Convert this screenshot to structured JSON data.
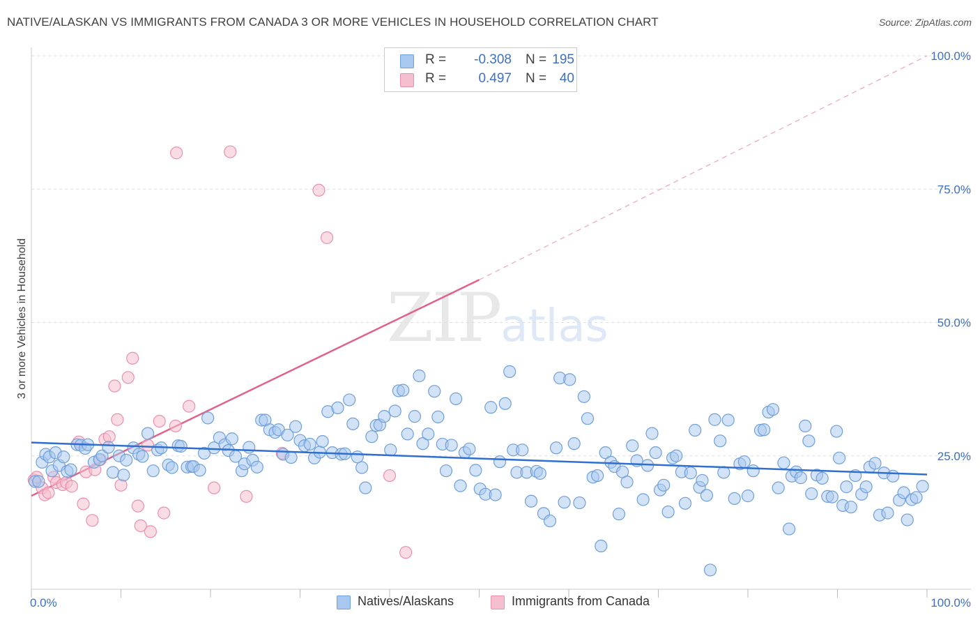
{
  "title": "NATIVE/ALASKAN VS IMMIGRANTS FROM CANADA 3 OR MORE VEHICLES IN HOUSEHOLD CORRELATION CHART",
  "source": "Source: ZipAtlas.com",
  "watermark": {
    "zip": "ZIP",
    "atlas": "atlas"
  },
  "legend": {
    "rows": [
      {
        "r_label": "R =",
        "r_value": "-0.308",
        "n_label": "N =",
        "n_value": "195"
      },
      {
        "r_label": "R =",
        "r_value": "0.497",
        "n_label": "N =",
        "n_value": "40"
      }
    ]
  },
  "bottom_legend": [
    "Natives/Alaskans",
    "Immigrants from Canada"
  ],
  "colors": {
    "blue_fill": "#a8c8f0",
    "blue_stroke": "#6f9fd8",
    "blue_line": "#2f6fcf",
    "pink_fill": "#f6bfd0",
    "pink_stroke": "#ea8fae",
    "pink_line": "#e0628a",
    "axis_text": "#3d6fc4",
    "grid": "#dddddd"
  },
  "chart_data": {
    "type": "scatter",
    "title": "NATIVE/ALASKAN VS IMMIGRANTS FROM CANADA 3 OR MORE VEHICLES IN HOUSEHOLD CORRELATION CHART",
    "xlabel": "",
    "ylabel": "3 or more Vehicles in Household",
    "xlim": [
      0,
      100
    ],
    "ylim": [
      0,
      100
    ],
    "x_tick_labels": [
      "0.0%",
      "100.0%"
    ],
    "y_tick_labels": [
      {
        "value": 25,
        "label": "25.0%"
      },
      {
        "value": 50,
        "label": "50.0%"
      },
      {
        "value": 75,
        "label": "75.0%"
      },
      {
        "value": 100,
        "label": "100.0%"
      }
    ],
    "series": [
      {
        "name": "Natives/Alaskans",
        "R": -0.308,
        "N": 195,
        "trend": {
          "x": [
            0,
            100
          ],
          "y": [
            27.5,
            21.5
          ]
        },
        "points": [
          [
            0.4,
            20.2
          ],
          [
            0.8,
            20.2
          ],
          [
            1.2,
            23.8
          ],
          [
            1.6,
            25.3
          ],
          [
            2.0,
            24.8
          ],
          [
            2.3,
            22.2
          ],
          [
            2.7,
            25.6
          ],
          [
            3.1,
            23.2
          ],
          [
            3.6,
            24.8
          ],
          [
            4.0,
            22.1
          ],
          [
            4.4,
            22.4
          ],
          [
            5.1,
            27.1
          ],
          [
            5.5,
            27.0
          ],
          [
            6.0,
            26.4
          ],
          [
            6.3,
            27.1
          ],
          [
            7.0,
            23.8
          ],
          [
            7.6,
            24.3
          ],
          [
            7.9,
            25.0
          ],
          [
            8.6,
            26.6
          ],
          [
            9.1,
            21.9
          ],
          [
            9.8,
            25.0
          ],
          [
            10.3,
            21.4
          ],
          [
            10.6,
            24.2
          ],
          [
            11.4,
            26.5
          ],
          [
            12.0,
            25.3
          ],
          [
            12.4,
            24.9
          ],
          [
            13.0,
            29.2
          ],
          [
            13.6,
            22.2
          ],
          [
            14.1,
            26.1
          ],
          [
            14.5,
            26.5
          ],
          [
            15.3,
            23.3
          ],
          [
            15.7,
            22.8
          ],
          [
            16.4,
            26.9
          ],
          [
            16.7,
            26.8
          ],
          [
            17.4,
            22.9
          ],
          [
            17.9,
            23.0
          ],
          [
            18.1,
            23.0
          ],
          [
            18.8,
            22.3
          ],
          [
            19.3,
            25.5
          ],
          [
            19.7,
            32.1
          ],
          [
            20.4,
            26.5
          ],
          [
            21.0,
            28.4
          ],
          [
            21.6,
            27.1
          ],
          [
            22.0,
            26.0
          ],
          [
            22.4,
            28.2
          ],
          [
            22.8,
            24.9
          ],
          [
            23.5,
            22.2
          ],
          [
            23.8,
            23.5
          ],
          [
            24.3,
            26.6
          ],
          [
            24.7,
            24.2
          ],
          [
            25.2,
            22.9
          ],
          [
            25.7,
            31.7
          ],
          [
            26.1,
            31.7
          ],
          [
            26.6,
            29.9
          ],
          [
            27.2,
            29.4
          ],
          [
            27.6,
            29.9
          ],
          [
            28.1,
            25.3
          ],
          [
            28.6,
            28.9
          ],
          [
            29.0,
            24.7
          ],
          [
            29.5,
            30.5
          ],
          [
            30.0,
            27.9
          ],
          [
            30.5,
            26.9
          ],
          [
            31.1,
            27.2
          ],
          [
            31.6,
            24.6
          ],
          [
            32.2,
            25.7
          ],
          [
            32.5,
            27.7
          ],
          [
            33.1,
            33.3
          ],
          [
            33.6,
            25.6
          ],
          [
            34.2,
            34.0
          ],
          [
            34.6,
            25.3
          ],
          [
            35.0,
            25.4
          ],
          [
            35.5,
            35.5
          ],
          [
            35.9,
            31.0
          ],
          [
            36.4,
            24.8
          ],
          [
            36.9,
            22.8
          ],
          [
            37.3,
            19.0
          ],
          [
            38.0,
            28.6
          ],
          [
            38.5,
            30.7
          ],
          [
            38.9,
            30.8
          ],
          [
            39.4,
            32.4
          ],
          [
            40.1,
            26.1
          ],
          [
            40.6,
            33.4
          ],
          [
            41.0,
            37.2
          ],
          [
            41.5,
            37.3
          ],
          [
            42.0,
            29.1
          ],
          [
            42.8,
            32.4
          ],
          [
            43.3,
            40.0
          ],
          [
            43.7,
            27.3
          ],
          [
            44.3,
            29.1
          ],
          [
            45.0,
            37.1
          ],
          [
            45.4,
            32.3
          ],
          [
            45.9,
            27.2
          ],
          [
            46.3,
            22.2
          ],
          [
            46.9,
            27.0
          ],
          [
            47.4,
            35.7
          ],
          [
            47.9,
            19.4
          ],
          [
            48.4,
            25.6
          ],
          [
            48.9,
            26.3
          ],
          [
            49.6,
            22.3
          ],
          [
            50.1,
            18.8
          ],
          [
            50.7,
            17.8
          ],
          [
            51.3,
            34.1
          ],
          [
            51.8,
            17.7
          ],
          [
            52.3,
            23.9
          ],
          [
            52.9,
            34.8
          ],
          [
            53.4,
            40.8
          ],
          [
            53.8,
            26.1
          ],
          [
            54.2,
            21.9
          ],
          [
            54.8,
            26.1
          ],
          [
            55.3,
            21.9
          ],
          [
            55.8,
            16.5
          ],
          [
            56.4,
            22.1
          ],
          [
            56.8,
            21.7
          ],
          [
            57.2,
            14.2
          ],
          [
            57.9,
            12.8
          ],
          [
            58.6,
            26.5
          ],
          [
            59.0,
            39.6
          ],
          [
            59.5,
            16.3
          ],
          [
            60.1,
            39.3
          ],
          [
            60.6,
            27.3
          ],
          [
            61.2,
            16.2
          ],
          [
            61.7,
            36.1
          ],
          [
            62.1,
            32.0
          ],
          [
            62.7,
            21.0
          ],
          [
            63.2,
            21.3
          ],
          [
            63.6,
            8.1
          ],
          [
            64.1,
            25.6
          ],
          [
            64.7,
            23.8
          ],
          [
            65.1,
            23.0
          ],
          [
            65.6,
            14.1
          ],
          [
            66.0,
            22.0
          ],
          [
            66.5,
            20.1
          ],
          [
            67.1,
            26.9
          ],
          [
            67.6,
            24.1
          ],
          [
            68.3,
            16.8
          ],
          [
            68.8,
            23.2
          ],
          [
            69.3,
            29.2
          ],
          [
            69.7,
            25.6
          ],
          [
            70.2,
            18.6
          ],
          [
            70.6,
            19.5
          ],
          [
            71.1,
            14.5
          ],
          [
            71.6,
            24.6
          ],
          [
            72.0,
            25.0
          ],
          [
            72.6,
            22.0
          ],
          [
            73.0,
            16.1
          ],
          [
            73.6,
            21.8
          ],
          [
            74.1,
            29.8
          ],
          [
            74.6,
            19.1
          ],
          [
            74.9,
            20.4
          ],
          [
            75.4,
            17.6
          ],
          [
            75.8,
            3.6
          ],
          [
            76.3,
            31.8
          ],
          [
            76.9,
            27.8
          ],
          [
            77.3,
            21.9
          ],
          [
            77.8,
            31.7
          ],
          [
            78.5,
            17.0
          ],
          [
            79.1,
            23.5
          ],
          [
            79.6,
            23.9
          ],
          [
            80.0,
            17.5
          ],
          [
            80.6,
            22.2
          ],
          [
            81.4,
            29.8
          ],
          [
            81.8,
            29.9
          ],
          [
            82.3,
            33.2
          ],
          [
            82.8,
            33.7
          ],
          [
            83.4,
            19.0
          ],
          [
            84.0,
            23.7
          ],
          [
            84.6,
            11.3
          ],
          [
            84.9,
            21.2
          ],
          [
            85.4,
            22.0
          ],
          [
            85.9,
            20.9
          ],
          [
            86.4,
            30.6
          ],
          [
            86.8,
            27.8
          ],
          [
            87.1,
            17.9
          ],
          [
            87.7,
            21.4
          ],
          [
            88.3,
            20.8
          ],
          [
            88.9,
            17.4
          ],
          [
            89.4,
            17.3
          ],
          [
            89.9,
            29.6
          ],
          [
            90.2,
            24.6
          ],
          [
            90.6,
            15.7
          ],
          [
            91.0,
            19.2
          ],
          [
            91.5,
            15.4
          ],
          [
            92.0,
            21.3
          ],
          [
            92.7,
            17.8
          ],
          [
            93.2,
            19.2
          ],
          [
            93.6,
            22.9
          ],
          [
            94.2,
            23.6
          ],
          [
            94.7,
            13.9
          ],
          [
            95.2,
            21.8
          ],
          [
            95.6,
            14.3
          ],
          [
            96.2,
            21.2
          ],
          [
            96.9,
            16.7
          ],
          [
            97.4,
            18.1
          ],
          [
            97.8,
            13.0
          ],
          [
            98.3,
            16.8
          ],
          [
            98.8,
            17.2
          ],
          [
            99.5,
            19.3
          ]
        ]
      },
      {
        "name": "Immigrants from Canada",
        "R": 0.497,
        "N": 40,
        "trend": {
          "x": [
            0,
            50
          ],
          "y": [
            17.5,
            58.0
          ],
          "dashed_extension": {
            "x": [
              50,
              100
            ],
            "y": [
              58.0,
              100.0
            ]
          }
        },
        "points": [
          [
            0.3,
            20.5
          ],
          [
            0.6,
            21.0
          ],
          [
            1.2,
            19.0
          ],
          [
            1.5,
            17.7
          ],
          [
            1.9,
            18.1
          ],
          [
            2.5,
            21.0
          ],
          [
            2.8,
            20.0
          ],
          [
            3.5,
            19.6
          ],
          [
            3.9,
            20.0
          ],
          [
            4.5,
            19.3
          ],
          [
            5.3,
            27.6
          ],
          [
            5.8,
            16.0
          ],
          [
            6.1,
            22.0
          ],
          [
            6.8,
            12.9
          ],
          [
            7.1,
            22.4
          ],
          [
            7.7,
            24.3
          ],
          [
            8.2,
            28.1
          ],
          [
            8.7,
            28.6
          ],
          [
            9.3,
            38.1
          ],
          [
            9.6,
            31.8
          ],
          [
            10.0,
            19.5
          ],
          [
            10.8,
            39.7
          ],
          [
            11.3,
            43.3
          ],
          [
            11.9,
            15.6
          ],
          [
            12.2,
            11.9
          ],
          [
            13.0,
            27.0
          ],
          [
            13.3,
            10.8
          ],
          [
            14.3,
            31.5
          ],
          [
            14.8,
            14.3
          ],
          [
            16.1,
            30.6
          ],
          [
            16.2,
            81.8
          ],
          [
            17.6,
            34.3
          ],
          [
            20.4,
            19.0
          ],
          [
            22.2,
            82.0
          ],
          [
            24.0,
            17.4
          ],
          [
            28.0,
            25.5
          ],
          [
            32.1,
            74.8
          ],
          [
            33.0,
            65.9
          ],
          [
            40.0,
            21.3
          ],
          [
            41.8,
            6.9
          ]
        ]
      }
    ]
  }
}
